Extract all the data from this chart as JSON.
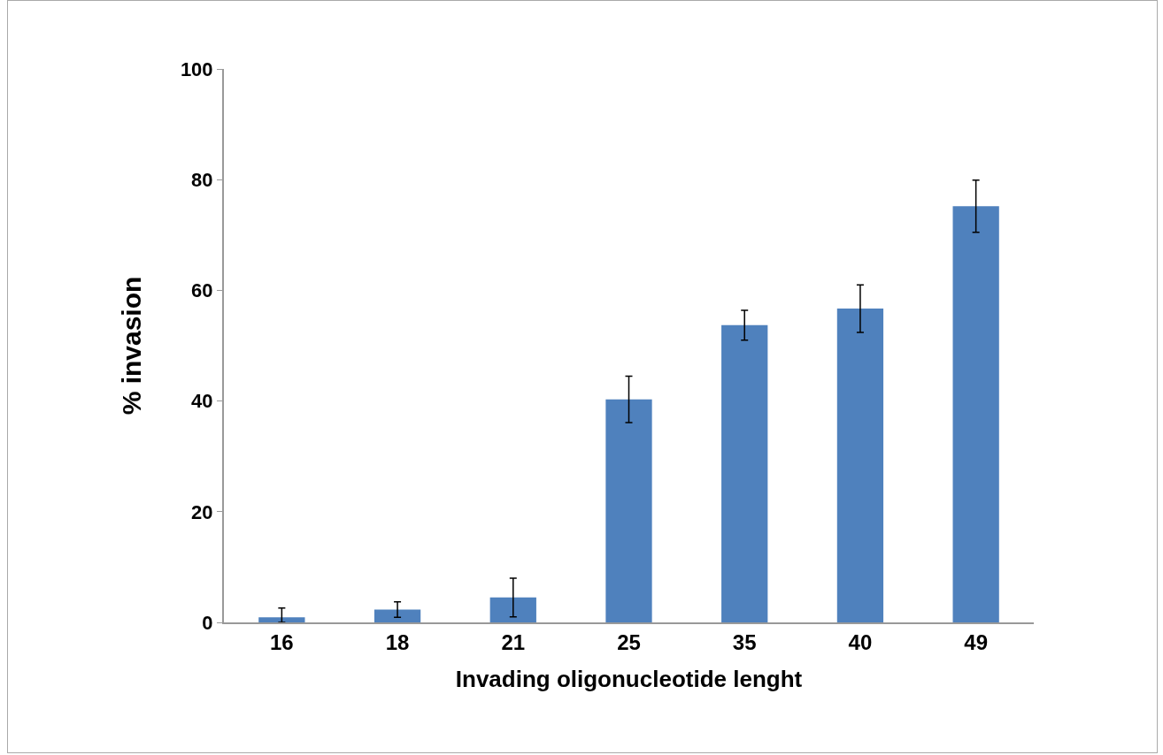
{
  "chart_data": {
    "type": "bar",
    "xlabel": "Invading oligonucleotide lenght",
    "ylabel": "% invasion",
    "categories": [
      "16",
      "18",
      "21",
      "25",
      "35",
      "40",
      "49"
    ],
    "values": [
      0.9,
      2.3,
      4.5,
      40.3,
      53.7,
      56.7,
      75.2
    ],
    "errors": [
      [
        0,
        2.6
      ],
      1.4,
      3.5,
      4.2,
      2.7,
      4.3,
      4.7
    ],
    "color": "#4f81bd",
    "ylim": [
      0,
      100
    ],
    "yticks": [
      0,
      20,
      40,
      60,
      80,
      100
    ],
    "grid": false
  }
}
